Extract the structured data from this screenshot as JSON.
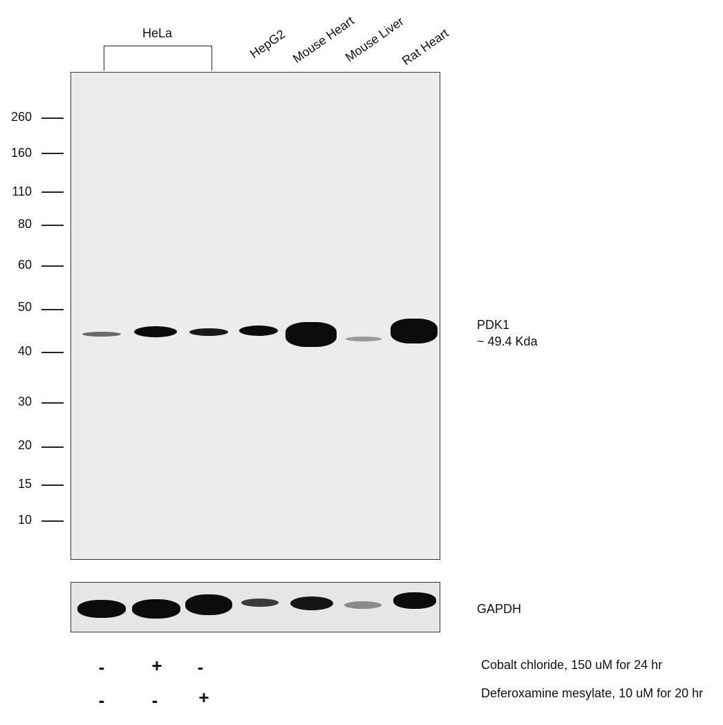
{
  "group_label": "HeLa",
  "lanes": [
    "HepG2",
    "Mouse Heart",
    "Mouse Liver",
    "Rat Heart"
  ],
  "mw_markers": [
    "260",
    "160",
    "110",
    "80",
    "60",
    "50",
    "40",
    "30",
    "20",
    "15",
    "10"
  ],
  "target": {
    "name": "PDK1",
    "size": "~ 49.4 Kda"
  },
  "loading_control": "GAPDH",
  "treatments": [
    {
      "label": "Cobalt chloride, 150 uM for 24 hr",
      "signs": [
        "-",
        "+",
        "-"
      ]
    },
    {
      "label": "Deferoxamine mesylate, 10 uM for 20 hr",
      "signs": [
        "-",
        "-",
        "+"
      ]
    }
  ]
}
